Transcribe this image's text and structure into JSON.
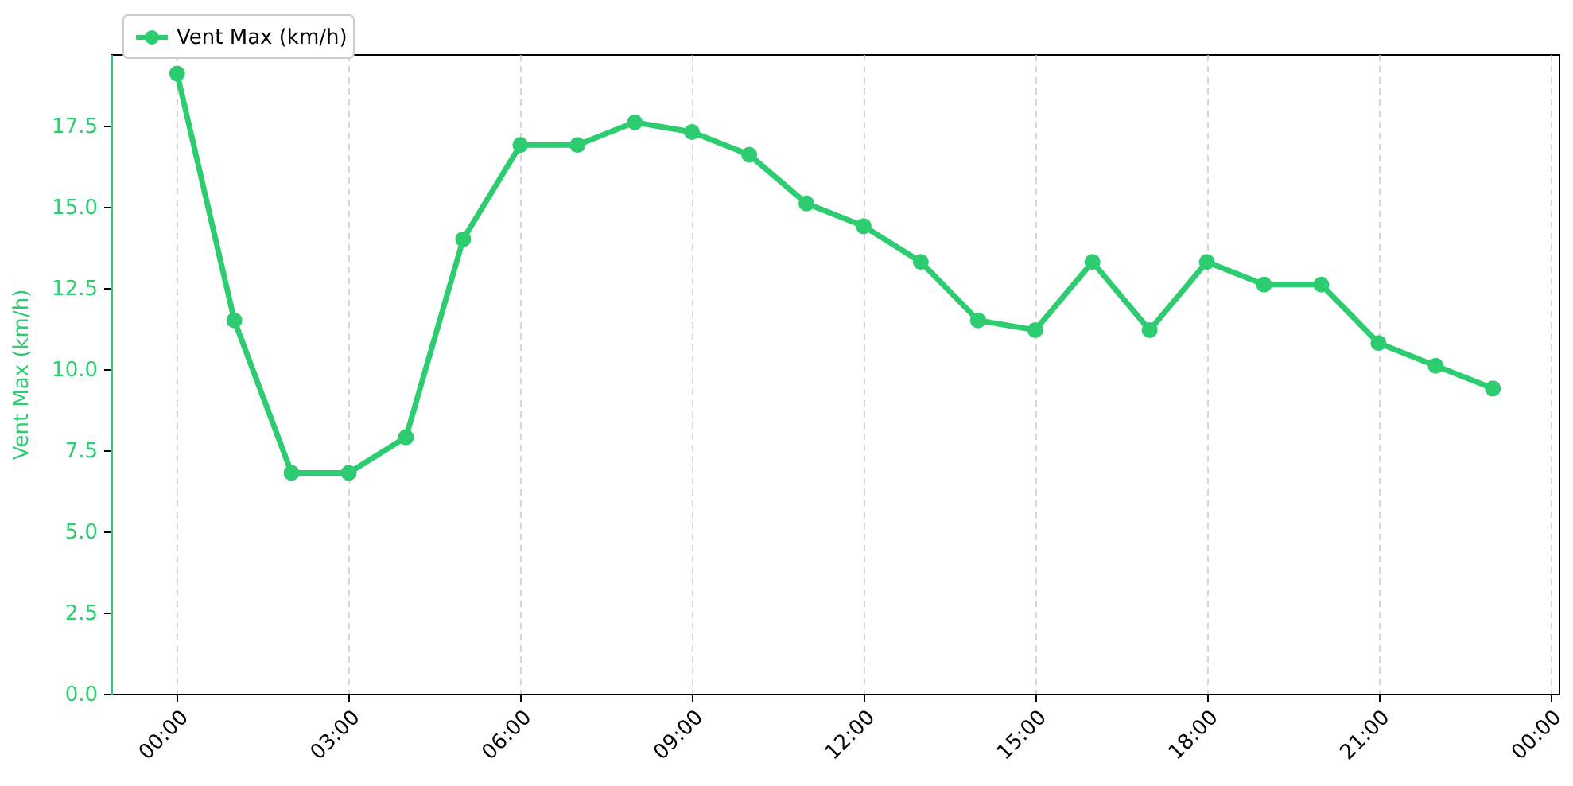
{
  "chart_data": {
    "type": "line",
    "ylabel": "Vent Max (km/h)",
    "x": [
      0,
      1,
      2,
      3,
      4,
      5,
      6,
      7,
      8,
      9,
      10,
      11,
      12,
      13,
      14,
      15,
      16,
      17,
      18,
      19,
      20,
      21,
      22,
      23
    ],
    "series": [
      {
        "name": "Vent Max (km/h)",
        "color": "#2ecc71",
        "values": [
          19.1,
          11.5,
          6.8,
          6.8,
          7.9,
          14.0,
          16.9,
          16.9,
          17.6,
          17.3,
          16.6,
          15.1,
          14.4,
          13.3,
          11.5,
          11.2,
          13.3,
          11.2,
          13.3,
          12.6,
          12.6,
          10.8,
          10.1,
          9.4
        ]
      }
    ],
    "xlim": [
      -1.15,
      24.15
    ],
    "xticks": [
      {
        "value": 0,
        "label": "00:00"
      },
      {
        "value": 3,
        "label": "03:00"
      },
      {
        "value": 6,
        "label": "06:00"
      },
      {
        "value": 9,
        "label": "09:00"
      },
      {
        "value": 12,
        "label": "12:00"
      },
      {
        "value": 15,
        "label": "15:00"
      },
      {
        "value": 18,
        "label": "18:00"
      },
      {
        "value": 21,
        "label": "21:00"
      },
      {
        "value": 24,
        "label": "00:00"
      }
    ],
    "ylim": [
      0,
      19.7
    ],
    "yticks": [
      {
        "value": 0,
        "label": "0.0"
      },
      {
        "value": 2.5,
        "label": "2.5"
      },
      {
        "value": 5,
        "label": "5.0"
      },
      {
        "value": 7.5,
        "label": "7.5"
      },
      {
        "value": 10,
        "label": "10.0"
      },
      {
        "value": 12.5,
        "label": "12.5"
      },
      {
        "value": 15,
        "label": "15.0"
      },
      {
        "value": 17.5,
        "label": "17.5"
      }
    ],
    "grid": "x",
    "legend": "top left",
    "marker": "circle",
    "line_style": "solid"
  }
}
